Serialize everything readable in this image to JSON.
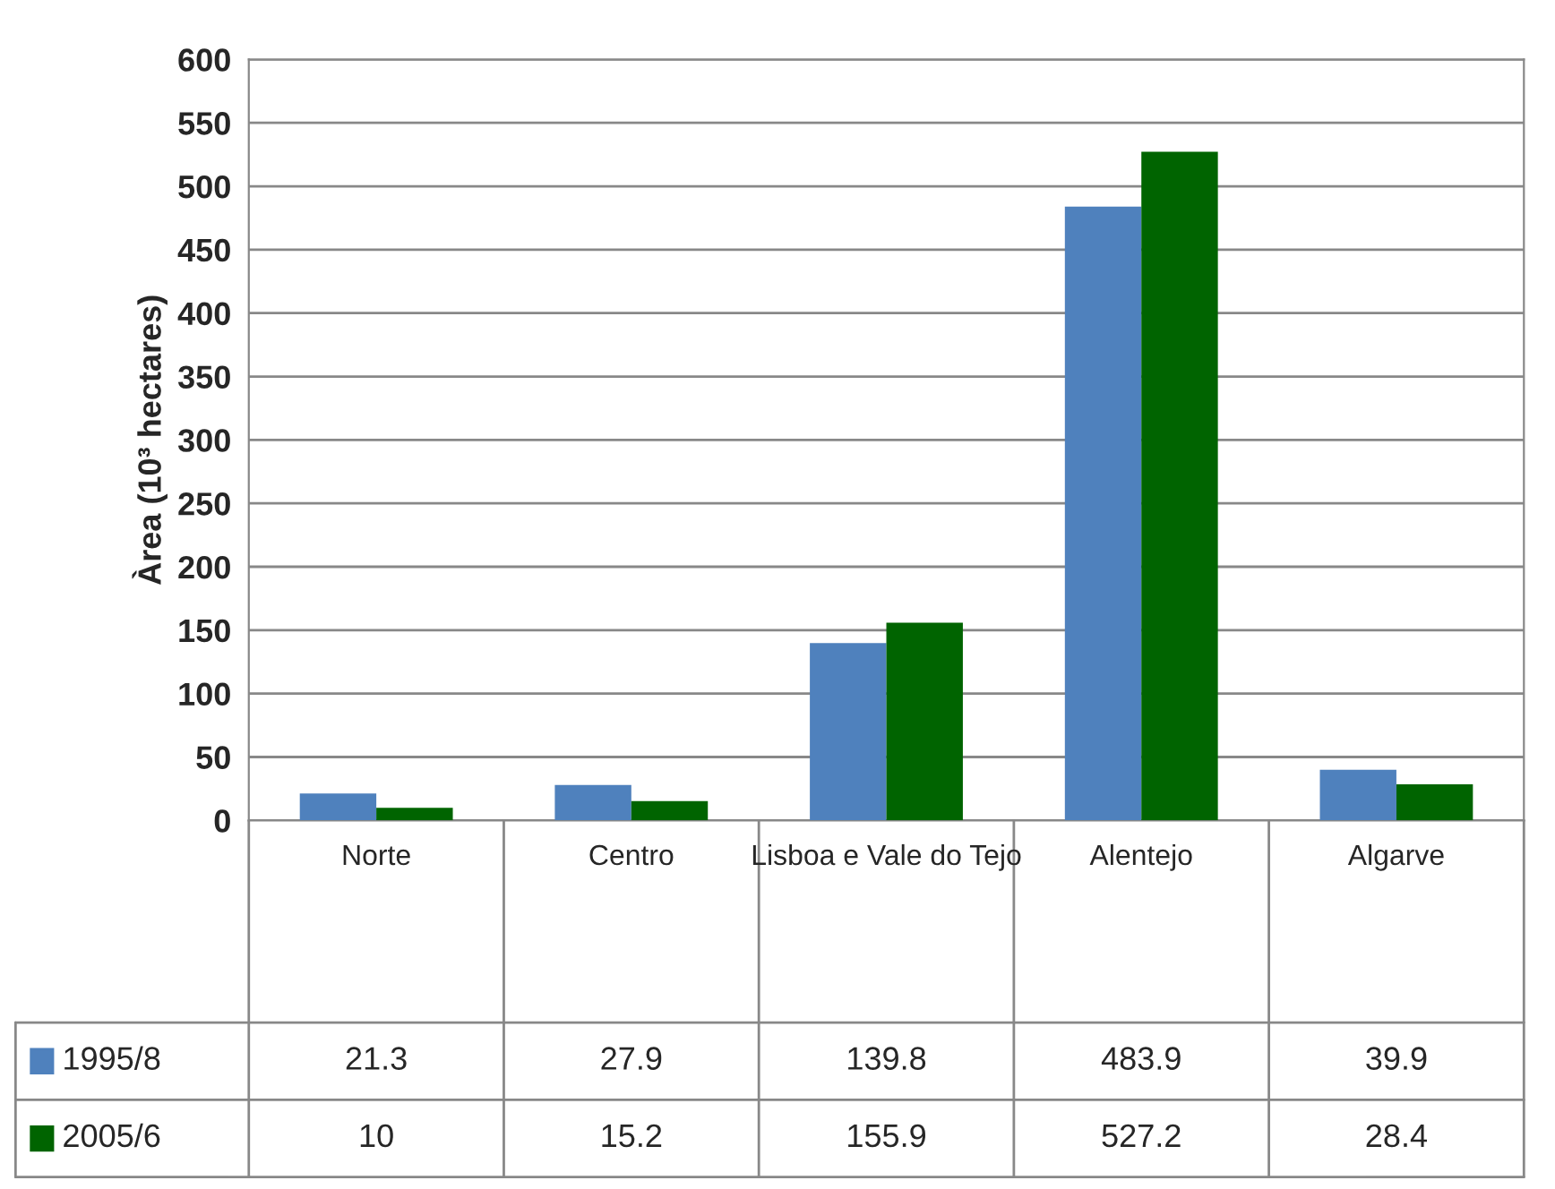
{
  "chart_data": {
    "type": "bar",
    "ylabel": "Àrea (10³ hectares)",
    "categories": [
      "Norte",
      "Centro",
      "Lisboa e Vale do Tejo",
      "Alentejo",
      "Algarve"
    ],
    "series": [
      {
        "name": "1995/8",
        "color": "#4f81bd",
        "values": [
          21.3,
          27.9,
          139.8,
          483.9,
          39.9
        ]
      },
      {
        "name": "2005/6",
        "color": "#006400",
        "values": [
          10,
          15.2,
          155.9,
          527.2,
          28.4
        ]
      }
    ],
    "ylim": [
      0,
      600
    ],
    "yticks": [
      0,
      50,
      100,
      150,
      200,
      250,
      300,
      350,
      400,
      450,
      500,
      550,
      600
    ],
    "grid": "y",
    "data_labels": true,
    "legend": "bottom"
  }
}
